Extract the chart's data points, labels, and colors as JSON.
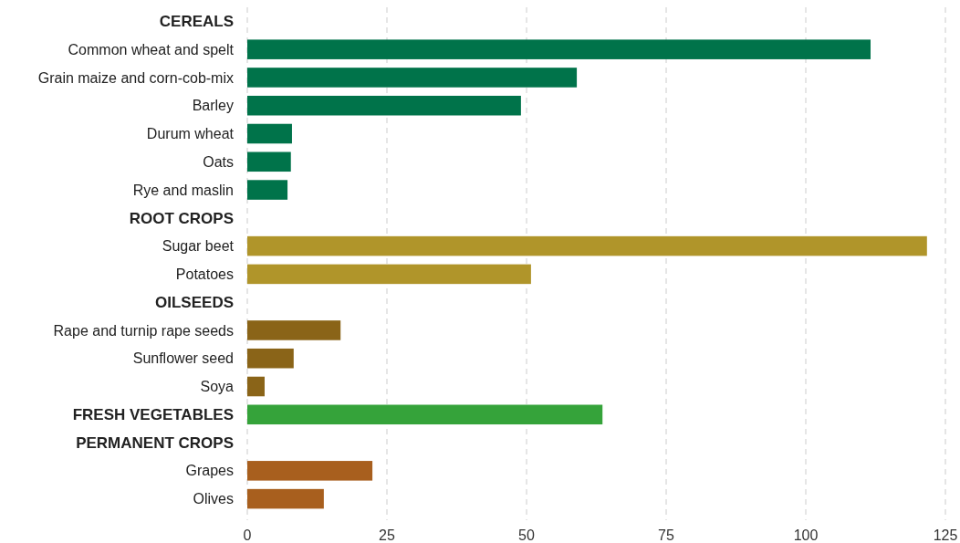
{
  "chart_data": {
    "type": "bar",
    "orientation": "horizontal",
    "categories": [
      "CEREALS",
      "Common wheat and spelt",
      "Grain maize and corn-cob-mix",
      "Barley",
      "Durum wheat",
      "Oats",
      "Rye and maslin",
      "ROOT CROPS",
      "Sugar beet",
      "Potatoes",
      "OILSEEDS",
      "Rape and turnip rape seeds",
      "Sunflower seed",
      "Soya",
      "FRESH VEGETABLES",
      "PERMANENT CROPS",
      "Grapes",
      "Olives"
    ],
    "values": [
      null,
      111.6,
      59.0,
      49.0,
      8.0,
      7.8,
      7.2,
      null,
      121.7,
      50.8,
      null,
      16.7,
      8.3,
      3.1,
      63.6,
      null,
      22.4,
      13.7
    ],
    "colors": [
      null,
      "#00734a",
      "#00734a",
      "#00734a",
      "#00734a",
      "#00734a",
      "#00734a",
      null,
      "#b0952a",
      "#b0952a",
      null,
      "#8a6418",
      "#8a6418",
      "#8a6418",
      "#35a33a",
      null,
      "#a85f1e",
      "#a85f1e"
    ],
    "xlim": [
      0,
      125
    ],
    "xticks": [
      0,
      25,
      50,
      75,
      100,
      125
    ],
    "grid": "x"
  }
}
